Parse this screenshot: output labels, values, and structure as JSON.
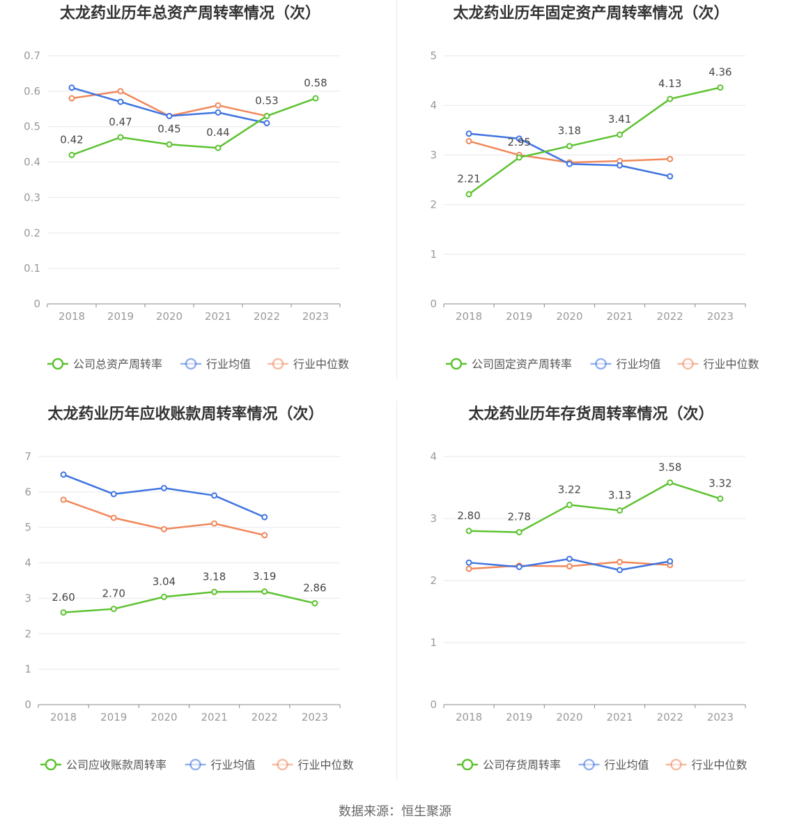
{
  "source_text": "数据来源：恒生聚源",
  "colors": {
    "company": "#5cc22f",
    "avg": "#3f74e0",
    "median": "#f0875a",
    "grid": "#e6e6ef",
    "axis": "#888888"
  },
  "chart_data": [
    {
      "type": "line",
      "title": "太龙药业历年总资产周转率情况（次）",
      "categories": [
        "2018",
        "2019",
        "2020",
        "2021",
        "2022",
        "2023"
      ],
      "ylim": [
        0,
        0.7
      ],
      "yticks": [
        "0",
        "0.1",
        "0.2",
        "0.3",
        "0.4",
        "0.5",
        "0.6",
        "0.7"
      ],
      "legend_position": "bottom",
      "series": [
        {
          "name": "公司总资产周转率",
          "role": "company",
          "values": [
            0.42,
            0.47,
            0.45,
            0.44,
            0.53,
            0.58
          ],
          "labels": [
            "0.42",
            "0.47",
            "0.45",
            "0.44",
            "0.53",
            "0.58"
          ]
        },
        {
          "name": "行业均值",
          "role": "avg",
          "values": [
            0.61,
            0.57,
            0.53,
            0.54,
            0.51,
            null
          ]
        },
        {
          "name": "行业中位数",
          "role": "median",
          "values": [
            0.58,
            0.6,
            0.53,
            0.56,
            0.53,
            null
          ]
        }
      ]
    },
    {
      "type": "line",
      "title": "太龙药业历年固定资产周转率情况（次）",
      "categories": [
        "2018",
        "2019",
        "2020",
        "2021",
        "2022",
        "2023"
      ],
      "ylim": [
        0,
        5
      ],
      "yticks": [
        "0",
        "1",
        "2",
        "3",
        "4",
        "5"
      ],
      "legend_position": "bottom",
      "series": [
        {
          "name": "公司固定资产周转率",
          "role": "company",
          "values": [
            2.21,
            2.95,
            3.18,
            3.41,
            4.13,
            4.36
          ],
          "labels": [
            "2.21",
            "2.95",
            "3.18",
            "3.41",
            "4.13",
            "4.36"
          ]
        },
        {
          "name": "行业均值",
          "role": "avg",
          "values": [
            3.43,
            3.33,
            2.82,
            2.79,
            2.57,
            null
          ]
        },
        {
          "name": "行业中位数",
          "role": "median",
          "values": [
            3.28,
            3.0,
            2.85,
            2.88,
            2.92,
            null
          ]
        }
      ]
    },
    {
      "type": "line",
      "title": "太龙药业历年应收账款周转率情况（次）",
      "categories": [
        "2018",
        "2019",
        "2020",
        "2021",
        "2022",
        "2023"
      ],
      "ylim": [
        0,
        7
      ],
      "yticks": [
        "0",
        "1",
        "2",
        "3",
        "4",
        "5",
        "6",
        "7"
      ],
      "legend_position": "bottom",
      "series": [
        {
          "name": "公司应收账款周转率",
          "role": "company",
          "values": [
            2.6,
            2.7,
            3.04,
            3.18,
            3.19,
            2.86
          ],
          "labels": [
            "2.60",
            "2.70",
            "3.04",
            "3.18",
            "3.19",
            "2.86"
          ]
        },
        {
          "name": "行业均值",
          "role": "avg",
          "values": [
            6.49,
            5.94,
            6.11,
            5.9,
            5.29,
            null
          ]
        },
        {
          "name": "行业中位数",
          "role": "median",
          "values": [
            5.78,
            5.27,
            4.95,
            5.11,
            4.78,
            null
          ]
        }
      ]
    },
    {
      "type": "line",
      "title": "太龙药业历年存货周转率情况（次）",
      "categories": [
        "2018",
        "2019",
        "2020",
        "2021",
        "2022",
        "2023"
      ],
      "ylim": [
        0,
        4
      ],
      "yticks": [
        "0",
        "1",
        "2",
        "3",
        "4"
      ],
      "legend_position": "bottom",
      "series": [
        {
          "name": "公司存货周转率",
          "role": "company",
          "values": [
            2.8,
            2.78,
            3.22,
            3.13,
            3.58,
            3.32
          ],
          "labels": [
            "2.80",
            "2.78",
            "3.22",
            "3.13",
            "3.58",
            "3.32"
          ]
        },
        {
          "name": "行业均值",
          "role": "avg",
          "values": [
            2.29,
            2.22,
            2.35,
            2.17,
            2.31,
            null
          ]
        },
        {
          "name": "行业中位数",
          "role": "median",
          "values": [
            2.19,
            2.24,
            2.23,
            2.3,
            2.25,
            null
          ]
        }
      ]
    }
  ]
}
